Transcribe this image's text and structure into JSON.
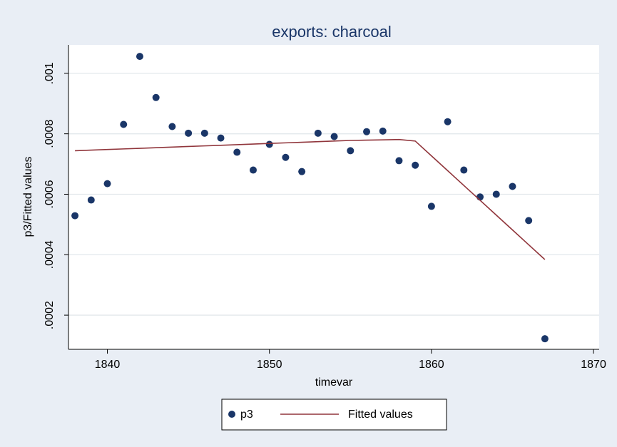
{
  "chart_data": {
    "type": "scatter",
    "title": "exports: charcoal",
    "xlabel": "timevar",
    "ylabel": "p3/Fitted values",
    "x": [
      1838,
      1839,
      1840,
      1841,
      1842,
      1843,
      1844,
      1845,
      1846,
      1847,
      1848,
      1849,
      1850,
      1851,
      1852,
      1853,
      1854,
      1855,
      1856,
      1857,
      1858,
      1859,
      1860,
      1861,
      1862,
      1863,
      1864,
      1865,
      1866,
      1867
    ],
    "series": [
      {
        "name": "p3",
        "type": "scatter",
        "color": "#1a3668",
        "values": [
          0.000529,
          0.000581,
          0.000635,
          0.000831,
          0.001056,
          0.00092,
          0.000824,
          0.000802,
          0.000802,
          0.000786,
          0.000739,
          0.00068,
          0.000765,
          0.000722,
          0.000675,
          0.000802,
          0.000791,
          0.000744,
          0.000807,
          0.000809,
          0.000711,
          0.000696,
          0.00056,
          0.00084,
          0.00068,
          0.000591,
          0.0006,
          0.000626,
          0.000513,
          0.000122
        ]
      },
      {
        "name": "Fitted values",
        "type": "line",
        "color": "#90353b",
        "values": [
          0.000744,
          0.000746,
          0.000748,
          0.00075,
          0.000752,
          0.000754,
          0.000756,
          0.000758,
          0.00076,
          0.000762,
          0.000764,
          0.000766,
          0.000768,
          0.00077,
          0.000772,
          0.000774,
          0.000776,
          0.000778,
          0.000779,
          0.00078,
          0.000781,
          0.000776,
          0.000727,
          0.000678,
          0.000629,
          0.00058,
          0.000531,
          0.000482,
          0.000433,
          0.000384
        ]
      }
    ],
    "xlim": [
      1837.6,
      1870.35
    ],
    "xticks": [
      1840,
      1850,
      1860,
      1870
    ],
    "ylim": [
      8.7e-05,
      0.001094
    ],
    "yticks": [
      {
        "value": 0.0002,
        "label": ".0002"
      },
      {
        "value": 0.0004,
        "label": ".0004"
      },
      {
        "value": 0.0006,
        "label": ".0006"
      },
      {
        "value": 0.0008,
        "label": ".0008"
      },
      {
        "value": 0.001,
        "label": ".001"
      }
    ],
    "grid": true
  }
}
